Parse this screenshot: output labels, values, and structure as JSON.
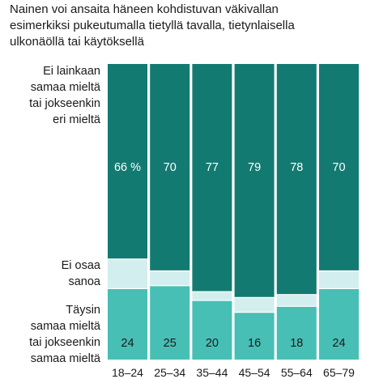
{
  "chart_data": {
    "type": "stacked_bar_100",
    "title_lines": [
      "Nainen voi ansaita häneen kohdistuvan väkivallan",
      "esimerkiksi pukeutumalla tietyllä tavalla, tietynlaisella",
      "ulkonäöllä tai käytöksellä"
    ],
    "categories": [
      "18–24",
      "25–34",
      "35–44",
      "45–54",
      "55–64",
      "65–79"
    ],
    "series": [
      {
        "name_lines": [
          "Täysin",
          "samaa mieltä",
          "tai jokseenkin",
          "samaa mieltä"
        ],
        "values": [
          24,
          25,
          20,
          16,
          18,
          24
        ],
        "labels": [
          "24",
          "25",
          "20",
          "16",
          "18",
          "24"
        ],
        "color": "#47bfb5"
      },
      {
        "name_lines": [
          "Ei osaa",
          "sanoa"
        ],
        "values": [
          10,
          5,
          3,
          5,
          4,
          6
        ],
        "labels": [
          "",
          "",
          "",
          "",
          "",
          ""
        ],
        "color": "#d3eeef"
      },
      {
        "name_lines": [
          "Ei lainkaan",
          "samaa mieltä",
          "tai jokseenkin",
          "eri mieltä"
        ],
        "values": [
          66,
          70,
          77,
          79,
          78,
          70
        ],
        "labels": [
          "66 %",
          "70",
          "77",
          "79",
          "78",
          "70"
        ],
        "color": "#137a72"
      }
    ],
    "ylim": [
      0,
      100
    ],
    "colors": {
      "label_light": "#ffffff",
      "label_dark": "#1a1a1a",
      "separator": "#ffffff"
    }
  }
}
